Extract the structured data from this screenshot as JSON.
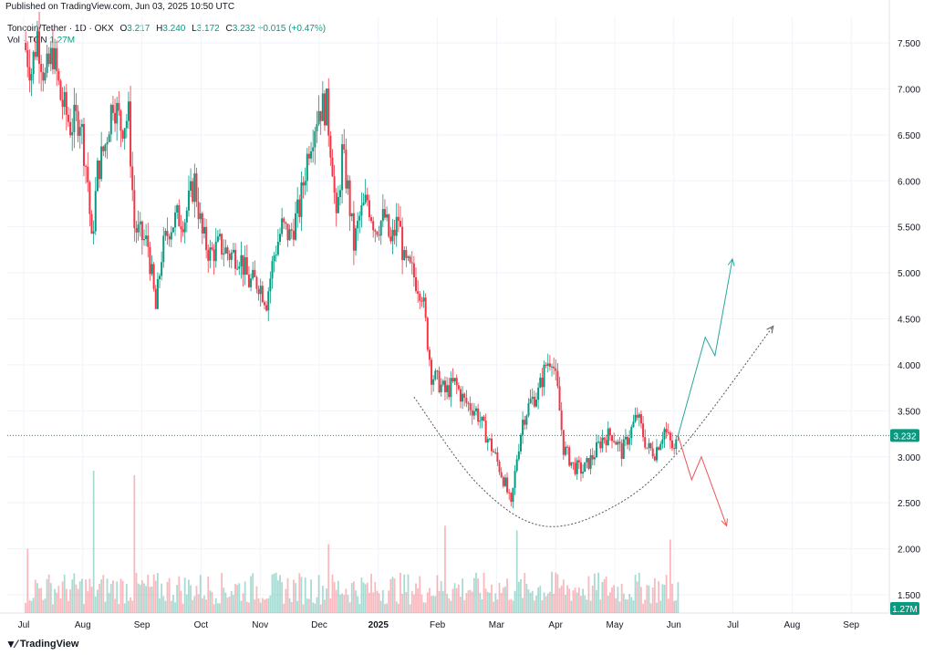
{
  "header": {
    "published": "Published on TradingView.com, Jun 03, 2025 10:50 UTC"
  },
  "legend": {
    "symbol": "Toncoin/Tether · 1D · OKX",
    "open_label": "O",
    "open": "3.217",
    "high_label": "H",
    "high": "3.240",
    "low_label": "L",
    "low": "3.172",
    "close_label": "C",
    "close": "3.232",
    "change": "+0.015 (+0.47%)",
    "volume_label": "Vol · TON",
    "volume": "1.27M"
  },
  "footer": {
    "brand": "TradingView",
    "logo_icon": "tradingview-logo-icon"
  },
  "colors": {
    "up": "#089981",
    "down": "#f23645",
    "grid": "#f0f3fa",
    "text": "#131722",
    "curve": "#555555",
    "up_arrow": "#26a69a",
    "down_arrow": "#ef5350"
  },
  "chart_data": {
    "type": "candlestick",
    "x_ticks": [
      "Jul",
      "Aug",
      "Sep",
      "Oct",
      "Nov",
      "Dec",
      "2025",
      "Feb",
      "Mar",
      "Apr",
      "May",
      "Jun",
      "Jul",
      "Aug",
      "Sep"
    ],
    "y_ticks": [
      "7.500",
      "7.000",
      "6.500",
      "6.000",
      "5.500",
      "5.000",
      "4.500",
      "4.000",
      "3.500",
      "3.000",
      "2.500",
      "2.000",
      "1.500"
    ],
    "ylim": [
      1.1,
      7.95
    ],
    "last_price": 3.232,
    "last_price_label": "3.232",
    "volume_label": "1.27M",
    "close_path": [
      [
        "2024-07-01",
        7.5
      ],
      [
        "2024-07-05",
        7.2
      ],
      [
        "2024-07-08",
        7.6
      ],
      [
        "2024-07-12",
        7.1
      ],
      [
        "2024-07-16",
        7.4
      ],
      [
        "2024-07-20",
        6.9
      ],
      [
        "2024-07-25",
        6.6
      ],
      [
        "2024-07-30",
        6.7
      ],
      [
        "2024-08-03",
        6.0
      ],
      [
        "2024-08-05",
        5.3
      ],
      [
        "2024-08-08",
        6.1
      ],
      [
        "2024-08-12",
        6.4
      ],
      [
        "2024-08-16",
        6.9
      ],
      [
        "2024-08-20",
        6.6
      ],
      [
        "2024-08-24",
        6.7
      ],
      [
        "2024-08-27",
        5.5
      ],
      [
        "2024-08-30",
        5.4
      ],
      [
        "2024-09-03",
        5.3
      ],
      [
        "2024-09-07",
        4.6
      ],
      [
        "2024-09-10",
        5.2
      ],
      [
        "2024-09-14",
        5.5
      ],
      [
        "2024-09-18",
        5.6
      ],
      [
        "2024-09-22",
        5.6
      ],
      [
        "2024-09-27",
        6.0
      ],
      [
        "2024-10-01",
        5.4
      ],
      [
        "2024-10-05",
        5.2
      ],
      [
        "2024-10-10",
        5.3
      ],
      [
        "2024-10-15",
        5.2
      ],
      [
        "2024-10-20",
        5.2
      ],
      [
        "2024-10-25",
        4.9
      ],
      [
        "2024-10-30",
        4.9
      ],
      [
        "2024-11-03",
        4.7
      ],
      [
        "2024-11-07",
        5.2
      ],
      [
        "2024-11-11",
        5.5
      ],
      [
        "2024-11-15",
        5.4
      ],
      [
        "2024-11-20",
        5.7
      ],
      [
        "2024-11-25",
        6.4
      ],
      [
        "2024-11-30",
        6.8
      ],
      [
        "2024-12-04",
        6.8
      ],
      [
        "2024-12-07",
        6.2
      ],
      [
        "2024-12-09",
        5.5
      ],
      [
        "2024-12-12",
        6.3
      ],
      [
        "2024-12-15",
        5.9
      ],
      [
        "2024-12-18",
        5.3
      ],
      [
        "2024-12-21",
        5.6
      ],
      [
        "2024-12-25",
        5.8
      ],
      [
        "2024-12-29",
        5.5
      ],
      [
        "2025-01-03",
        5.6
      ],
      [
        "2025-01-06",
        5.3
      ],
      [
        "2025-01-10",
        5.6
      ],
      [
        "2025-01-13",
        5.1
      ],
      [
        "2025-01-17",
        5.0
      ],
      [
        "2025-01-22",
        4.8
      ],
      [
        "2025-01-27",
        3.9
      ],
      [
        "2025-01-31",
        3.8
      ],
      [
        "2025-02-03",
        3.7
      ],
      [
        "2025-02-08",
        3.8
      ],
      [
        "2025-02-13",
        3.6
      ],
      [
        "2025-02-19",
        3.5
      ],
      [
        "2025-02-25",
        3.2
      ],
      [
        "2025-03-01",
        3.0
      ],
      [
        "2025-03-06",
        2.7
      ],
      [
        "2025-03-09",
        2.45
      ],
      [
        "2025-03-12",
        3.0
      ],
      [
        "2025-03-15",
        3.4
      ],
      [
        "2025-03-19",
        3.6
      ],
      [
        "2025-03-23",
        3.7
      ],
      [
        "2025-03-27",
        4.0
      ],
      [
        "2025-03-30",
        4.1
      ],
      [
        "2025-04-02",
        3.7
      ],
      [
        "2025-04-05",
        3.1
      ],
      [
        "2025-04-10",
        2.9
      ],
      [
        "2025-04-15",
        2.85
      ],
      [
        "2025-04-20",
        3.0
      ],
      [
        "2025-04-25",
        3.2
      ],
      [
        "2025-04-30",
        3.25
      ],
      [
        "2025-05-05",
        3.05
      ],
      [
        "2025-05-10",
        3.3
      ],
      [
        "2025-05-13",
        3.45
      ],
      [
        "2025-05-18",
        3.1
      ],
      [
        "2025-05-22",
        3.05
      ],
      [
        "2025-05-27",
        3.3
      ],
      [
        "2025-06-01",
        3.05
      ],
      [
        "2025-06-03",
        3.232
      ]
    ],
    "projection_up": [
      [
        "2025-06-03",
        3.232
      ],
      [
        "2025-06-17",
        4.3
      ],
      [
        "2025-06-22",
        4.1
      ],
      [
        "2025-07-01",
        5.15
      ]
    ],
    "projection_down": [
      [
        "2025-06-03",
        3.232
      ],
      [
        "2025-06-10",
        2.75
      ],
      [
        "2025-06-15",
        3.0
      ],
      [
        "2025-06-28",
        2.25
      ]
    ],
    "cup_curve": [
      [
        "2025-01-18",
        3.65
      ],
      [
        "2025-02-20",
        2.7
      ],
      [
        "2025-03-25",
        2.25
      ],
      [
        "2025-04-30",
        2.45
      ],
      [
        "2025-06-03",
        3.05
      ],
      [
        "2025-07-22",
        4.42
      ]
    ],
    "volume_spikes": [
      [
        "2024-08-06",
        2.85
      ],
      [
        "2024-08-27",
        2.8
      ],
      [
        "2024-07-03",
        2.0
      ],
      [
        "2024-12-05",
        2.05
      ],
      [
        "2025-02-03",
        2.25
      ],
      [
        "2025-03-12",
        2.2
      ],
      [
        "2025-03-30",
        1.75
      ],
      [
        "2025-05-30",
        2.1
      ]
    ]
  }
}
